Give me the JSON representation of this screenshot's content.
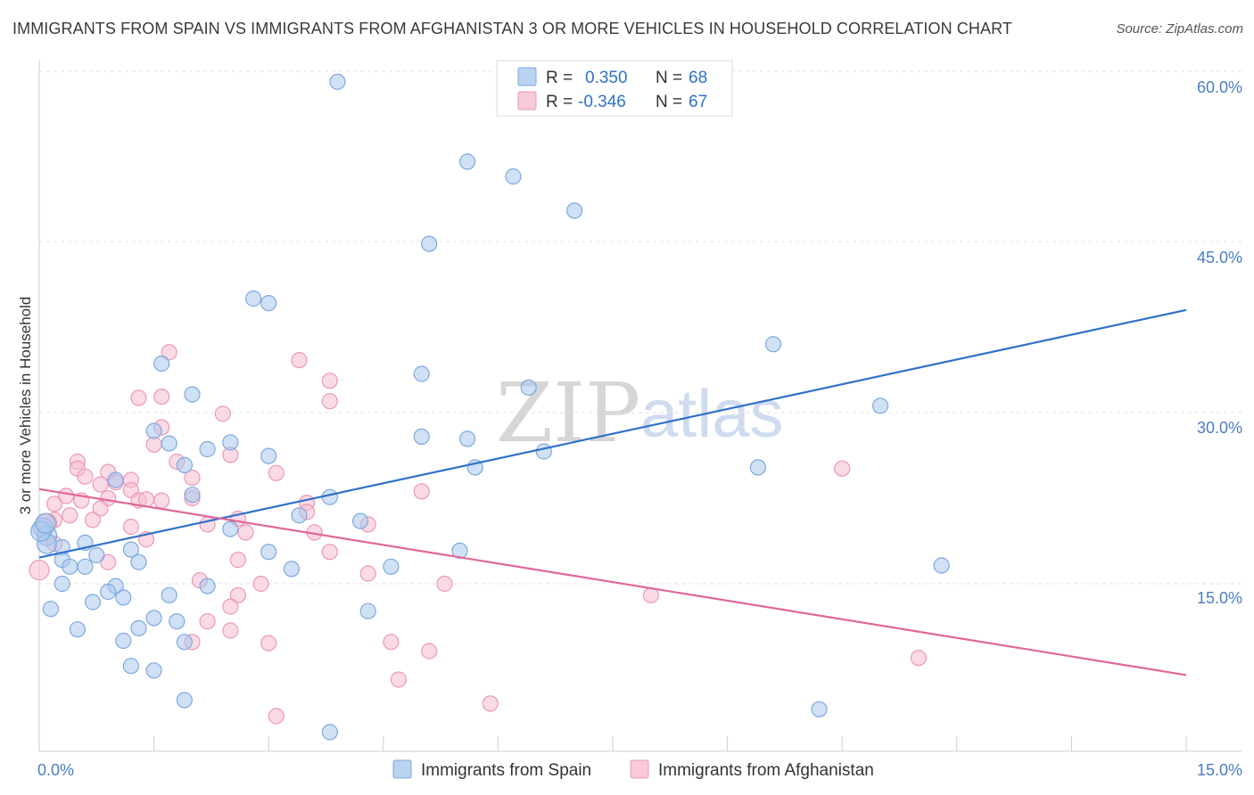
{
  "title": "IMMIGRANTS FROM SPAIN VS IMMIGRANTS FROM AFGHANISTAN 3 OR MORE VEHICLES IN HOUSEHOLD CORRELATION CHART",
  "source": "Source: ZipAtlas.com",
  "watermark": {
    "zip": "ZIP",
    "atlas": "atlas"
  },
  "legend": {
    "r_label": "R =",
    "n_label": "N =",
    "rows": [
      {
        "r": "0.350",
        "n": "68"
      },
      {
        "r": "-0.346",
        "n": "67"
      }
    ]
  },
  "chart_data": {
    "type": "scatter",
    "title": "IMMIGRANTS FROM SPAIN VS IMMIGRANTS FROM AFGHANISTAN 3 OR MORE VEHICLES IN HOUSEHOLD CORRELATION CHART",
    "xlabel": "",
    "ylabel": "3 or more Vehicles in Household",
    "xlim": [
      0,
      15
    ],
    "ylim": [
      0,
      60
    ],
    "x_tick_labels": [
      "0.0%",
      "15.0%"
    ],
    "y_ticks": [
      15,
      30,
      45,
      60
    ],
    "y_tick_labels": [
      "15.0%",
      "30.0%",
      "45.0%",
      "60.0%"
    ],
    "grid": true,
    "legend_position": "top-center",
    "colors": {
      "spain_fill": "#a9c8ee",
      "spain_stroke": "#7ea8de",
      "spain_line": "#2f72c9",
      "afghanistan_fill": "#f6bcd0",
      "afghanistan_stroke": "#ec98b5",
      "afghanistan_line": "#e0679a"
    },
    "series": [
      {
        "name": "Immigrants from Spain",
        "trend": {
          "x": [
            0,
            15
          ],
          "y": [
            17.3,
            39.0
          ]
        },
        "points": [
          [
            3.9,
            59.0
          ],
          [
            5.6,
            52.0
          ],
          [
            6.2,
            50.7
          ],
          [
            7.0,
            47.7
          ],
          [
            5.1,
            44.8
          ],
          [
            2.8,
            40.0
          ],
          [
            3.0,
            39.6
          ],
          [
            9.6,
            36.0
          ],
          [
            1.6,
            34.3
          ],
          [
            5.0,
            33.4
          ],
          [
            6.4,
            32.2
          ],
          [
            2.0,
            31.6
          ],
          [
            11.0,
            30.6
          ],
          [
            1.5,
            28.4
          ],
          [
            5.0,
            27.9
          ],
          [
            5.6,
            27.7
          ],
          [
            2.5,
            27.4
          ],
          [
            1.7,
            27.3
          ],
          [
            2.2,
            26.8
          ],
          [
            6.6,
            26.6
          ],
          [
            3.0,
            26.2
          ],
          [
            1.9,
            25.4
          ],
          [
            5.7,
            25.2
          ],
          [
            9.4,
            25.2
          ],
          [
            1.0,
            24.1
          ],
          [
            2.0,
            22.8
          ],
          [
            3.8,
            22.6
          ],
          [
            3.4,
            21.0
          ],
          [
            4.2,
            20.5
          ],
          [
            2.5,
            19.8
          ],
          [
            0.05,
            19.9
          ],
          [
            0.1,
            19.2
          ],
          [
            0.1,
            18.5
          ],
          [
            0.3,
            18.2
          ],
          [
            0.6,
            18.6
          ],
          [
            1.2,
            18.0
          ],
          [
            3.0,
            17.8
          ],
          [
            5.5,
            17.9
          ],
          [
            0.75,
            17.5
          ],
          [
            0.3,
            17.1
          ],
          [
            0.4,
            16.5
          ],
          [
            0.6,
            16.5
          ],
          [
            1.3,
            16.9
          ],
          [
            3.3,
            16.3
          ],
          [
            4.6,
            16.5
          ],
          [
            11.8,
            16.6
          ],
          [
            0.3,
            15.0
          ],
          [
            1.0,
            14.8
          ],
          [
            0.9,
            14.3
          ],
          [
            2.2,
            14.8
          ],
          [
            1.7,
            14.0
          ],
          [
            0.7,
            13.4
          ],
          [
            1.1,
            13.8
          ],
          [
            0.15,
            12.8
          ],
          [
            4.3,
            12.6
          ],
          [
            1.5,
            12.0
          ],
          [
            1.8,
            11.7
          ],
          [
            1.3,
            11.1
          ],
          [
            0.5,
            11.0
          ],
          [
            1.1,
            10.0
          ],
          [
            1.9,
            9.9
          ],
          [
            1.2,
            7.8
          ],
          [
            1.5,
            7.4
          ],
          [
            1.9,
            4.8
          ],
          [
            10.2,
            4.0
          ],
          [
            3.8,
            2.0
          ],
          [
            0.02,
            19.6
          ],
          [
            0.08,
            20.3
          ]
        ]
      },
      {
        "name": "Immigrants from Afghanistan",
        "trend": {
          "x": [
            0,
            15
          ],
          "y": [
            23.3,
            7.0
          ]
        },
        "points": [
          [
            1.7,
            35.3
          ],
          [
            3.4,
            34.6
          ],
          [
            3.8,
            32.8
          ],
          [
            1.6,
            31.4
          ],
          [
            1.3,
            31.3
          ],
          [
            3.8,
            31.0
          ],
          [
            2.4,
            29.9
          ],
          [
            1.6,
            28.7
          ],
          [
            1.5,
            27.2
          ],
          [
            2.5,
            26.3
          ],
          [
            1.8,
            25.7
          ],
          [
            0.5,
            25.7
          ],
          [
            0.5,
            25.1
          ],
          [
            10.5,
            25.1
          ],
          [
            0.9,
            24.8
          ],
          [
            3.1,
            24.7
          ],
          [
            0.6,
            24.4
          ],
          [
            1.2,
            24.1
          ],
          [
            2.0,
            24.3
          ],
          [
            0.8,
            23.7
          ],
          [
            1.2,
            23.2
          ],
          [
            5.0,
            23.1
          ],
          [
            0.35,
            22.7
          ],
          [
            0.9,
            22.5
          ],
          [
            1.3,
            22.3
          ],
          [
            2.0,
            22.5
          ],
          [
            0.55,
            22.3
          ],
          [
            0.2,
            22.0
          ],
          [
            1.4,
            22.4
          ],
          [
            3.5,
            22.1
          ],
          [
            0.8,
            21.6
          ],
          [
            3.5,
            21.3
          ],
          [
            0.4,
            21.0
          ],
          [
            1.6,
            22.3
          ],
          [
            2.6,
            20.7
          ],
          [
            0.7,
            20.6
          ],
          [
            0.2,
            20.6
          ],
          [
            0.1,
            20.3
          ],
          [
            2.2,
            20.2
          ],
          [
            1.2,
            20.0
          ],
          [
            3.6,
            19.5
          ],
          [
            4.3,
            20.2
          ],
          [
            2.7,
            19.5
          ],
          [
            1.4,
            18.9
          ],
          [
            0.2,
            18.5
          ],
          [
            3.8,
            17.8
          ],
          [
            2.6,
            17.1
          ],
          [
            0.9,
            16.9
          ],
          [
            0.0,
            16.2
          ],
          [
            4.3,
            15.9
          ],
          [
            5.3,
            15.0
          ],
          [
            2.1,
            15.3
          ],
          [
            2.9,
            15.0
          ],
          [
            8.0,
            14.0
          ],
          [
            2.6,
            14.0
          ],
          [
            2.5,
            13.0
          ],
          [
            2.2,
            11.7
          ],
          [
            2.5,
            10.9
          ],
          [
            2.0,
            9.9
          ],
          [
            3.0,
            9.8
          ],
          [
            4.6,
            9.9
          ],
          [
            5.1,
            9.1
          ],
          [
            11.5,
            8.5
          ],
          [
            4.7,
            6.6
          ],
          [
            5.9,
            4.5
          ],
          [
            3.1,
            3.4
          ],
          [
            1.0,
            23.9
          ]
        ]
      }
    ]
  }
}
